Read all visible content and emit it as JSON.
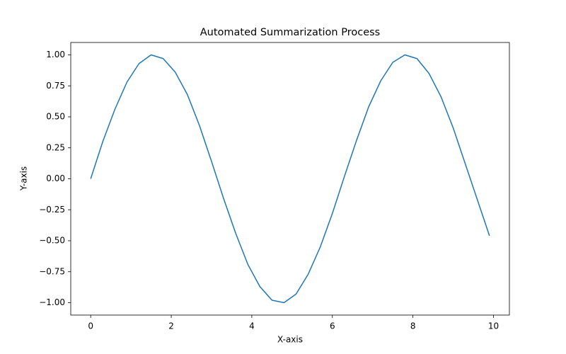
{
  "chart_data": {
    "type": "line",
    "title": "Automated Summarization Process",
    "x_label": "X-axis",
    "y_label": "Y-axis",
    "x": [
      0,
      0.3,
      0.6,
      0.9,
      1.2,
      1.5,
      1.8,
      2.1,
      2.4,
      2.7,
      3.0,
      3.3,
      3.6,
      3.9,
      4.2,
      4.5,
      4.8,
      5.1,
      5.4,
      5.7,
      6.0,
      6.3,
      6.6,
      6.9,
      7.2,
      7.5,
      7.8,
      8.1,
      8.4,
      8.7,
      9.0,
      9.3,
      9.6,
      9.9
    ],
    "series": [
      {
        "color": "#1f77b4",
        "values": [
          0,
          0.3,
          0.56,
          0.78,
          0.93,
          1.0,
          0.97,
          0.86,
          0.68,
          0.43,
          0.14,
          -0.16,
          -0.44,
          -0.69,
          -0.87,
          -0.98,
          -1.0,
          -0.93,
          -0.77,
          -0.55,
          -0.28,
          0.02,
          0.31,
          0.58,
          0.79,
          0.94,
          1.0,
          0.97,
          0.85,
          0.66,
          0.41,
          0.12,
          -0.17,
          -0.46
        ]
      }
    ],
    "xlim": [
      -0.495,
      10.395
    ],
    "ylim": [
      -1.1,
      1.1
    ],
    "xticks": [
      0,
      2,
      4,
      6,
      8,
      10
    ],
    "yticks": [
      {
        "value": -1,
        "label": "−1.00"
      },
      {
        "value": -0.75,
        "label": "−0.75"
      },
      {
        "value": -0.5,
        "label": "−0.50"
      },
      {
        "value": -0.25,
        "label": "−0.25"
      },
      {
        "value": 0,
        "label": "0.00"
      },
      {
        "value": 0.25,
        "label": "0.25"
      },
      {
        "value": 0.5,
        "label": "0.50"
      },
      {
        "value": 0.75,
        "label": "0.75"
      },
      {
        "value": 1,
        "label": "1.00"
      }
    ],
    "grid": false
  }
}
